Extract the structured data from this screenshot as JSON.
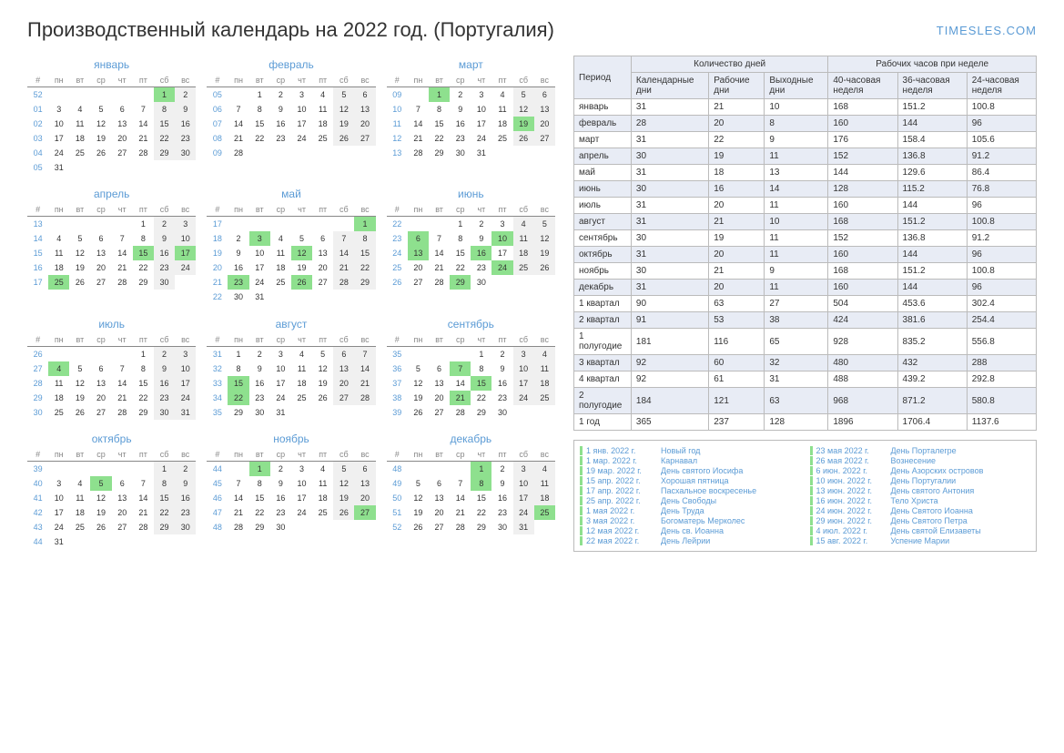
{
  "title": "Производственный календарь на 2022 год. (Португалия)",
  "brand": "TIMESLES.COM",
  "dow": [
    "#",
    "пн",
    "вт",
    "ср",
    "чт",
    "пт",
    "сб",
    "вс"
  ],
  "months": [
    {
      "name": "январь",
      "weeks": [
        [
          "52",
          "",
          "",
          "",
          "",
          "",
          "1",
          "2"
        ],
        [
          "01",
          "3",
          "4",
          "5",
          "6",
          "7",
          "8",
          "9"
        ],
        [
          "02",
          "10",
          "11",
          "12",
          "13",
          "14",
          "15",
          "16"
        ],
        [
          "03",
          "17",
          "18",
          "19",
          "20",
          "21",
          "22",
          "23"
        ],
        [
          "04",
          "24",
          "25",
          "26",
          "27",
          "28",
          "29",
          "30"
        ],
        [
          "05",
          "31",
          "",
          "",
          "",
          "",
          "",
          ""
        ]
      ],
      "hl": [
        [
          0,
          6
        ]
      ]
    },
    {
      "name": "февраль",
      "weeks": [
        [
          "05",
          "",
          "1",
          "2",
          "3",
          "4",
          "5",
          "6"
        ],
        [
          "06",
          "7",
          "8",
          "9",
          "10",
          "11",
          "12",
          "13"
        ],
        [
          "07",
          "14",
          "15",
          "16",
          "17",
          "18",
          "19",
          "20"
        ],
        [
          "08",
          "21",
          "22",
          "23",
          "24",
          "25",
          "26",
          "27"
        ],
        [
          "09",
          "28",
          "",
          "",
          "",
          "",
          "",
          ""
        ]
      ],
      "hl": []
    },
    {
      "name": "март",
      "weeks": [
        [
          "09",
          "",
          "1",
          "2",
          "3",
          "4",
          "5",
          "6"
        ],
        [
          "10",
          "7",
          "8",
          "9",
          "10",
          "11",
          "12",
          "13"
        ],
        [
          "11",
          "14",
          "15",
          "16",
          "17",
          "18",
          "19",
          "20"
        ],
        [
          "12",
          "21",
          "22",
          "23",
          "24",
          "25",
          "26",
          "27"
        ],
        [
          "13",
          "28",
          "29",
          "30",
          "31",
          "",
          "",
          ""
        ]
      ],
      "hl": [
        [
          0,
          2
        ],
        [
          2,
          6
        ]
      ]
    },
    {
      "name": "апрель",
      "weeks": [
        [
          "13",
          "",
          "",
          "",
          "",
          "1",
          "2",
          "3"
        ],
        [
          "14",
          "4",
          "5",
          "6",
          "7",
          "8",
          "9",
          "10"
        ],
        [
          "15",
          "11",
          "12",
          "13",
          "14",
          "15",
          "16",
          "17"
        ],
        [
          "16",
          "18",
          "19",
          "20",
          "21",
          "22",
          "23",
          "24"
        ],
        [
          "17",
          "25",
          "26",
          "27",
          "28",
          "29",
          "30",
          ""
        ]
      ],
      "hl": [
        [
          2,
          5
        ],
        [
          2,
          7
        ],
        [
          4,
          1
        ]
      ]
    },
    {
      "name": "май",
      "weeks": [
        [
          "17",
          "",
          "",
          "",
          "",
          "",
          "",
          "1"
        ],
        [
          "18",
          "2",
          "3",
          "4",
          "5",
          "6",
          "7",
          "8"
        ],
        [
          "19",
          "9",
          "10",
          "11",
          "12",
          "13",
          "14",
          "15"
        ],
        [
          "20",
          "16",
          "17",
          "18",
          "19",
          "20",
          "21",
          "22"
        ],
        [
          "21",
          "23",
          "24",
          "25",
          "26",
          "27",
          "28",
          "29"
        ],
        [
          "22",
          "30",
          "31",
          "",
          "",
          "",
          "",
          ""
        ]
      ],
      "hl": [
        [
          0,
          7
        ],
        [
          1,
          2
        ],
        [
          2,
          4
        ],
        [
          4,
          1
        ],
        [
          4,
          4
        ]
      ]
    },
    {
      "name": "июнь",
      "weeks": [
        [
          "22",
          "",
          "",
          "1",
          "2",
          "3",
          "4",
          "5"
        ],
        [
          "23",
          "6",
          "7",
          "8",
          "9",
          "10",
          "11",
          "12"
        ],
        [
          "24",
          "13",
          "14",
          "15",
          "16",
          "17",
          "18",
          "19"
        ],
        [
          "25",
          "20",
          "21",
          "22",
          "23",
          "24",
          "25",
          "26"
        ],
        [
          "26",
          "27",
          "28",
          "29",
          "30",
          "",
          "",
          ""
        ]
      ],
      "hl": [
        [
          1,
          1
        ],
        [
          1,
          5
        ],
        [
          2,
          1
        ],
        [
          2,
          4
        ],
        [
          3,
          5
        ],
        [
          4,
          3
        ]
      ]
    },
    {
      "name": "июль",
      "weeks": [
        [
          "26",
          "",
          "",
          "",
          "",
          "1",
          "2",
          "3"
        ],
        [
          "27",
          "4",
          "5",
          "6",
          "7",
          "8",
          "9",
          "10"
        ],
        [
          "28",
          "11",
          "12",
          "13",
          "14",
          "15",
          "16",
          "17"
        ],
        [
          "29",
          "18",
          "19",
          "20",
          "21",
          "22",
          "23",
          "24"
        ],
        [
          "30",
          "25",
          "26",
          "27",
          "28",
          "29",
          "30",
          "31"
        ]
      ],
      "hl": [
        [
          1,
          1
        ]
      ]
    },
    {
      "name": "август",
      "weeks": [
        [
          "31",
          "1",
          "2",
          "3",
          "4",
          "5",
          "6",
          "7"
        ],
        [
          "32",
          "8",
          "9",
          "10",
          "11",
          "12",
          "13",
          "14"
        ],
        [
          "33",
          "15",
          "16",
          "17",
          "18",
          "19",
          "20",
          "21"
        ],
        [
          "34",
          "22",
          "23",
          "24",
          "25",
          "26",
          "27",
          "28"
        ],
        [
          "35",
          "29",
          "30",
          "31",
          "",
          "",
          "",
          ""
        ]
      ],
      "hl": [
        [
          2,
          1
        ],
        [
          3,
          1
        ]
      ]
    },
    {
      "name": "сентябрь",
      "weeks": [
        [
          "35",
          "",
          "",
          "",
          "1",
          "2",
          "3",
          "4"
        ],
        [
          "36",
          "5",
          "6",
          "7",
          "8",
          "9",
          "10",
          "11"
        ],
        [
          "37",
          "12",
          "13",
          "14",
          "15",
          "16",
          "17",
          "18"
        ],
        [
          "38",
          "19",
          "20",
          "21",
          "22",
          "23",
          "24",
          "25"
        ],
        [
          "39",
          "26",
          "27",
          "28",
          "29",
          "30",
          "",
          ""
        ]
      ],
      "hl": [
        [
          1,
          3
        ],
        [
          2,
          4
        ],
        [
          3,
          3
        ]
      ]
    },
    {
      "name": "октябрь",
      "weeks": [
        [
          "39",
          "",
          "",
          "",
          "",
          "",
          "1",
          "2"
        ],
        [
          "40",
          "3",
          "4",
          "5",
          "6",
          "7",
          "8",
          "9"
        ],
        [
          "41",
          "10",
          "11",
          "12",
          "13",
          "14",
          "15",
          "16"
        ],
        [
          "42",
          "17",
          "18",
          "19",
          "20",
          "21",
          "22",
          "23"
        ],
        [
          "43",
          "24",
          "25",
          "26",
          "27",
          "28",
          "29",
          "30"
        ],
        [
          "44",
          "31",
          "",
          "",
          "",
          "",
          "",
          ""
        ]
      ],
      "hl": [
        [
          1,
          3
        ]
      ]
    },
    {
      "name": "ноябрь",
      "weeks": [
        [
          "44",
          "",
          "1",
          "2",
          "3",
          "4",
          "5",
          "6"
        ],
        [
          "45",
          "7",
          "8",
          "9",
          "10",
          "11",
          "12",
          "13"
        ],
        [
          "46",
          "14",
          "15",
          "16",
          "17",
          "18",
          "19",
          "20"
        ],
        [
          "47",
          "21",
          "22",
          "23",
          "24",
          "25",
          "26",
          "27"
        ],
        [
          "48",
          "28",
          "29",
          "30",
          "",
          "",
          "",
          ""
        ]
      ],
      "hl": [
        [
          0,
          2
        ],
        [
          3,
          7
        ]
      ]
    },
    {
      "name": "декабрь",
      "weeks": [
        [
          "48",
          "",
          "",
          "",
          "1",
          "2",
          "3",
          "4"
        ],
        [
          "49",
          "5",
          "6",
          "7",
          "8",
          "9",
          "10",
          "11"
        ],
        [
          "50",
          "12",
          "13",
          "14",
          "15",
          "16",
          "17",
          "18"
        ],
        [
          "51",
          "19",
          "20",
          "21",
          "22",
          "23",
          "24",
          "25"
        ],
        [
          "52",
          "26",
          "27",
          "28",
          "29",
          "30",
          "31",
          ""
        ]
      ],
      "hl": [
        [
          0,
          4
        ],
        [
          1,
          4
        ],
        [
          3,
          7
        ]
      ]
    }
  ],
  "stats_headers": {
    "period": "Период",
    "days_group": "Количество дней",
    "hours_group": "Рабочих часов при неделе",
    "cal": "Календарные дни",
    "work": "Рабочие дни",
    "off": "Выходные дни",
    "h40": "40-часовая неделя",
    "h36": "36-часовая неделя",
    "h24": "24-часовая неделя"
  },
  "stats_rows": [
    {
      "p": "январь",
      "c": "31",
      "w": "21",
      "o": "10",
      "h40": "168",
      "h36": "151.2",
      "h24": "100.8",
      "alt": false
    },
    {
      "p": "февраль",
      "c": "28",
      "w": "20",
      "o": "8",
      "h40": "160",
      "h36": "144",
      "h24": "96",
      "alt": true
    },
    {
      "p": "март",
      "c": "31",
      "w": "22",
      "o": "9",
      "h40": "176",
      "h36": "158.4",
      "h24": "105.6",
      "alt": false
    },
    {
      "p": "апрель",
      "c": "30",
      "w": "19",
      "o": "11",
      "h40": "152",
      "h36": "136.8",
      "h24": "91.2",
      "alt": true
    },
    {
      "p": "май",
      "c": "31",
      "w": "18",
      "o": "13",
      "h40": "144",
      "h36": "129.6",
      "h24": "86.4",
      "alt": false
    },
    {
      "p": "июнь",
      "c": "30",
      "w": "16",
      "o": "14",
      "h40": "128",
      "h36": "115.2",
      "h24": "76.8",
      "alt": true
    },
    {
      "p": "июль",
      "c": "31",
      "w": "20",
      "o": "11",
      "h40": "160",
      "h36": "144",
      "h24": "96",
      "alt": false
    },
    {
      "p": "август",
      "c": "31",
      "w": "21",
      "o": "10",
      "h40": "168",
      "h36": "151.2",
      "h24": "100.8",
      "alt": true
    },
    {
      "p": "сентябрь",
      "c": "30",
      "w": "19",
      "o": "11",
      "h40": "152",
      "h36": "136.8",
      "h24": "91.2",
      "alt": false
    },
    {
      "p": "октябрь",
      "c": "31",
      "w": "20",
      "o": "11",
      "h40": "160",
      "h36": "144",
      "h24": "96",
      "alt": true
    },
    {
      "p": "ноябрь",
      "c": "30",
      "w": "21",
      "o": "9",
      "h40": "168",
      "h36": "151.2",
      "h24": "100.8",
      "alt": false
    },
    {
      "p": "декабрь",
      "c": "31",
      "w": "20",
      "o": "11",
      "h40": "160",
      "h36": "144",
      "h24": "96",
      "alt": true
    },
    {
      "p": "1 квартал",
      "c": "90",
      "w": "63",
      "o": "27",
      "h40": "504",
      "h36": "453.6",
      "h24": "302.4",
      "alt": false
    },
    {
      "p": "2 квартал",
      "c": "91",
      "w": "53",
      "o": "38",
      "h40": "424",
      "h36": "381.6",
      "h24": "254.4",
      "alt": true
    },
    {
      "p": "1 полугодие",
      "c": "181",
      "w": "116",
      "o": "65",
      "h40": "928",
      "h36": "835.2",
      "h24": "556.8",
      "alt": false
    },
    {
      "p": "3 квартал",
      "c": "92",
      "w": "60",
      "o": "32",
      "h40": "480",
      "h36": "432",
      "h24": "288",
      "alt": true
    },
    {
      "p": "4 квартал",
      "c": "92",
      "w": "61",
      "o": "31",
      "h40": "488",
      "h36": "439.2",
      "h24": "292.8",
      "alt": false
    },
    {
      "p": "2 полугодие",
      "c": "184",
      "w": "121",
      "o": "63",
      "h40": "968",
      "h36": "871.2",
      "h24": "580.8",
      "alt": true
    },
    {
      "p": "1 год",
      "c": "365",
      "w": "237",
      "o": "128",
      "h40": "1896",
      "h36": "1706.4",
      "h24": "1137.6",
      "alt": false
    }
  ],
  "holidays": [
    {
      "d": "1 янв. 2022 г.",
      "n": "Новый год"
    },
    {
      "d": "23 мая 2022 г.",
      "n": "День Порталегре"
    },
    {
      "d": "1 мар. 2022 г.",
      "n": "Карнавал"
    },
    {
      "d": "26 мая 2022 г.",
      "n": "Вознесение"
    },
    {
      "d": "19 мар. 2022 г.",
      "n": "День святого Иосифа"
    },
    {
      "d": "6 июн. 2022 г.",
      "n": "День Азорских островов"
    },
    {
      "d": "15 апр. 2022 г.",
      "n": "Хорошая пятница"
    },
    {
      "d": "10 июн. 2022 г.",
      "n": "День Португалии"
    },
    {
      "d": "17 апр. 2022 г.",
      "n": "Пасхальное воскресенье"
    },
    {
      "d": "13 июн. 2022 г.",
      "n": "День святого Антония"
    },
    {
      "d": "25 апр. 2022 г.",
      "n": "День Свободы"
    },
    {
      "d": "16 июн. 2022 г.",
      "n": "Тело Христа"
    },
    {
      "d": "1 мая 2022 г.",
      "n": "День Труда"
    },
    {
      "d": "24 июн. 2022 г.",
      "n": "День Святого Иоанна"
    },
    {
      "d": "3 мая 2022 г.",
      "n": "Богоматерь Мерколес"
    },
    {
      "d": "29 июн. 2022 г.",
      "n": "День Святого Петра"
    },
    {
      "d": "12 мая 2022 г.",
      "n": "День св. Иоанна"
    },
    {
      "d": "4 июл. 2022 г.",
      "n": "День святой Елизаветы"
    },
    {
      "d": "22 мая 2022 г.",
      "n": "День Лейрии"
    },
    {
      "d": "15 авг. 2022 г.",
      "n": "Успение Марии"
    }
  ]
}
